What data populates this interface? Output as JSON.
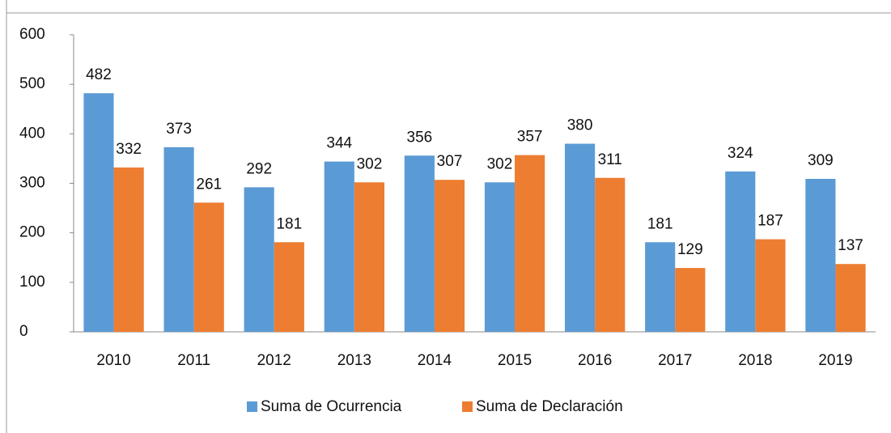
{
  "chart_data": {
    "type": "bar",
    "categories": [
      "2010",
      "2011",
      "2012",
      "2013",
      "2014",
      "2015",
      "2016",
      "2017",
      "2018",
      "2019"
    ],
    "series": [
      {
        "name": "Suma de Ocurrencia",
        "color": "#5b9bd5",
        "values": [
          482,
          373,
          292,
          344,
          356,
          302,
          380,
          181,
          324,
          309
        ]
      },
      {
        "name": "Suma de Declaración",
        "color": "#ed7d31",
        "values": [
          332,
          261,
          181,
          302,
          307,
          357,
          311,
          129,
          187,
          137
        ]
      }
    ],
    "ylim": [
      0,
      600
    ],
    "yticks": [
      0,
      100,
      200,
      300,
      400,
      500,
      600
    ],
    "grid": false,
    "legend": "bottom"
  }
}
